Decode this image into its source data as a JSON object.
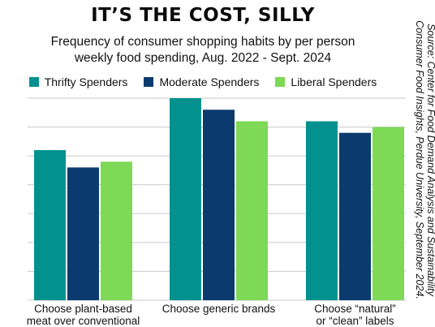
{
  "title": "IT’S THE COST, SILLY",
  "subtitle_line1": "Frequency of consumer shopping habits by per person",
  "subtitle_line2": "weekly food spending, Aug. 2022 - Sept. 2024",
  "source_line1": "Source: Center for Food Demand Analysis and Sustainability",
  "source_line2": "Consumer Food Insights,  Perdue University, September 2024.",
  "colors": {
    "thrifty": "#02918f",
    "moderate": "#0b3b6e",
    "liberal": "#7ed957",
    "grid": "#c9c9c9"
  },
  "chart_data": {
    "type": "bar",
    "title": "IT’S THE COST, SILLY",
    "categories": [
      [
        "Choose plant-based",
        "meat over conventional"
      ],
      [
        "Choose generic brands"
      ],
      [
        "Choose “natural”",
        "or “clean” labels"
      ]
    ],
    "series": [
      {
        "name": "Thrifty Spenders",
        "values": [
          26,
          35,
          31
        ]
      },
      {
        "name": "Moderate Spenders",
        "values": [
          23,
          33,
          29
        ]
      },
      {
        "name": "Liberal Spenders",
        "values": [
          24,
          31,
          30
        ]
      }
    ],
    "ylim": [
      0,
      35
    ],
    "grid": true,
    "legend": "top"
  }
}
